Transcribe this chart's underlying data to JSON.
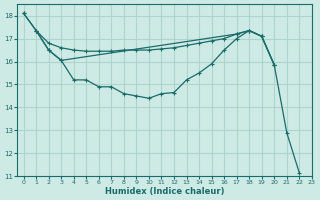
{
  "xlabel": "Humidex (Indice chaleur)",
  "ylabel": "",
  "xlim": [
    -0.5,
    23
  ],
  "ylim": [
    11,
    18.5
  ],
  "yticks": [
    11,
    12,
    13,
    14,
    15,
    16,
    17,
    18
  ],
  "xticks": [
    0,
    1,
    2,
    3,
    4,
    5,
    6,
    7,
    8,
    9,
    10,
    11,
    12,
    13,
    14,
    15,
    16,
    17,
    18,
    19,
    20,
    21,
    22,
    23
  ],
  "bg_color": "#ceeae5",
  "grid_color": "#aed4ce",
  "line_color": "#1a6b6b",
  "line1_x": [
    0,
    1,
    2,
    3,
    4,
    5,
    6,
    7,
    8,
    9,
    10,
    11,
    12,
    13,
    14,
    15,
    16,
    17,
    18,
    19,
    20,
    21,
    22
  ],
  "line1_y": [
    18.1,
    17.35,
    16.5,
    16.05,
    15.2,
    15.2,
    14.9,
    14.9,
    14.6,
    14.5,
    14.4,
    14.6,
    14.65,
    15.2,
    15.5,
    15.9,
    16.5,
    17.0,
    17.35,
    17.1,
    15.85,
    12.9,
    11.15
  ],
  "line2_x": [
    1,
    2,
    3,
    4,
    5,
    6,
    7,
    8,
    9,
    10,
    11,
    12,
    13,
    14,
    15,
    16,
    17,
    18,
    19,
    20
  ],
  "line2_y": [
    17.35,
    16.8,
    16.6,
    16.5,
    16.45,
    16.45,
    16.45,
    16.5,
    16.5,
    16.5,
    16.55,
    16.6,
    16.7,
    16.8,
    16.9,
    17.0,
    17.2,
    17.35,
    17.1,
    15.85
  ],
  "line3_x": [
    0,
    1,
    2,
    3,
    17,
    18,
    19,
    20
  ],
  "line3_y": [
    18.1,
    17.35,
    16.5,
    16.05,
    17.2,
    17.35,
    17.1,
    15.85
  ]
}
